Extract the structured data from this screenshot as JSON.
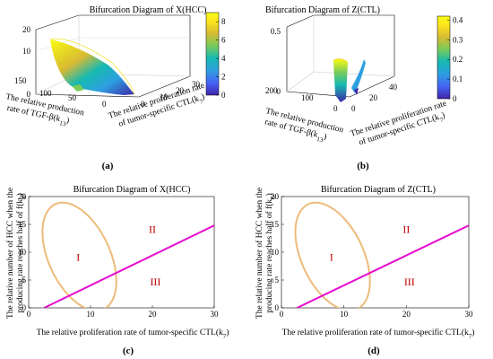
{
  "colors": {
    "ellipse": "#EDBB7A",
    "line": "#E60CCF",
    "roman": "#C00000",
    "colormap": [
      "#3E26A8",
      "#4764F6",
      "#2D9FE0",
      "#16B9B1",
      "#7ACB5A",
      "#D8BA33",
      "#FAE21E",
      "#F9FB14"
    ]
  },
  "captions": {
    "a": "(a)",
    "b": "(b)",
    "c": "(c)",
    "d": "(d)"
  },
  "chart_data": [
    {
      "id": "a",
      "type": "surface3d",
      "title": "Bifurcation Diagram of X(HCC)",
      "xlabel_line1": "The relative production",
      "xlabel_line2": "rate of TGF-β(k",
      "xlabel_sub": "13",
      "xlabel_end": ")",
      "ylabel_line1": "The relative proliferation rate",
      "ylabel_line2": "of tumor-specific CTL(k",
      "ylabel_sub": "7",
      "ylabel_end": ")",
      "ztick_labels": [
        "0",
        "10",
        "20"
      ],
      "xtick_labels": [
        "150",
        "100",
        "50",
        "0"
      ],
      "ytick_labels": [
        "0",
        "10",
        "20",
        "30"
      ],
      "colorbar_ticks": [
        "0",
        "2",
        "4",
        "6",
        "8"
      ],
      "colorbar_range": [
        0,
        9
      ]
    },
    {
      "id": "b",
      "type": "surface3d",
      "title": "Bifurcation Diagram of Z(CTL)",
      "xlabel_line1": "The relative production",
      "xlabel_line2": "rate of TGF-β(k",
      "xlabel_sub": "13",
      "xlabel_end": ")",
      "ylabel_line1": "The relative proliferation rate",
      "ylabel_line2": "of tumor-specific CTL(k",
      "ylabel_sub": "7",
      "ylabel_end": ")",
      "ztick_labels": [
        "0",
        "0.5"
      ],
      "xtick_labels": [
        "200",
        "100",
        "0"
      ],
      "ytick_labels": [
        "0",
        "20",
        "40"
      ],
      "colorbar_ticks": [
        "0",
        "0.1",
        "0.2",
        "0.3",
        "0.4"
      ],
      "colorbar_range": [
        0,
        0.42
      ]
    },
    {
      "id": "c",
      "type": "line",
      "title": "Bifurcation Diagram of X(HCC)",
      "xlabel": "The relative proliferation rate of tumor-specific CTL(k",
      "xlabel_sub": "7",
      "xlabel_end": ")",
      "ylabel_line1": "The relative number of HCC when the",
      "ylabel_line2": "producing rate reaches half of f(k",
      "ylabel_sub": "8",
      "ylabel_end": ")",
      "xlim": [
        0,
        30
      ],
      "ylim": [
        0,
        20
      ],
      "xticks": [
        0,
        10,
        20,
        30
      ],
      "yticks": [
        0,
        5,
        10,
        15,
        20
      ],
      "region_labels": [
        {
          "text": "I",
          "x": 8,
          "y": 8.5
        },
        {
          "text": "II",
          "x": 20,
          "y": 13.5
        },
        {
          "text": "III",
          "x": 20.5,
          "y": 4
        }
      ],
      "series": [
        {
          "type": "ellipse",
          "center": [
            8.2,
            9.2
          ],
          "semi_axes": [
            5.2,
            11.5
          ],
          "angle_deg": 37
        },
        {
          "type": "line",
          "x": [
            2.5,
            30
          ],
          "y": [
            0,
            14.8
          ]
        }
      ]
    },
    {
      "id": "d",
      "type": "line",
      "title": "Bifurcation Diagram of Z(CTL)",
      "xlabel": "The relative proliferation rate of tumor-specific CTL(k",
      "xlabel_sub": "7",
      "xlabel_end": ")",
      "ylabel_line1": "The relative number of HCC when the",
      "ylabel_line2": "producing rate reaches half of f(k",
      "ylabel_sub": "8",
      "ylabel_end": ")",
      "xlim": [
        0,
        30
      ],
      "ylim": [
        0,
        20
      ],
      "xticks": [
        0,
        10,
        20,
        30
      ],
      "yticks": [
        0,
        5,
        10,
        15,
        20
      ],
      "region_labels": [
        {
          "text": "I",
          "x": 8,
          "y": 8.5
        },
        {
          "text": "II",
          "x": 20,
          "y": 13.5
        },
        {
          "text": "III",
          "x": 20.5,
          "y": 4
        }
      ],
      "series": [
        {
          "type": "ellipse",
          "center": [
            8.2,
            9.2
          ],
          "semi_axes": [
            5.2,
            11.5
          ],
          "angle_deg": 37
        },
        {
          "type": "line",
          "x": [
            2.5,
            30
          ],
          "y": [
            0,
            14.8
          ]
        }
      ]
    }
  ]
}
